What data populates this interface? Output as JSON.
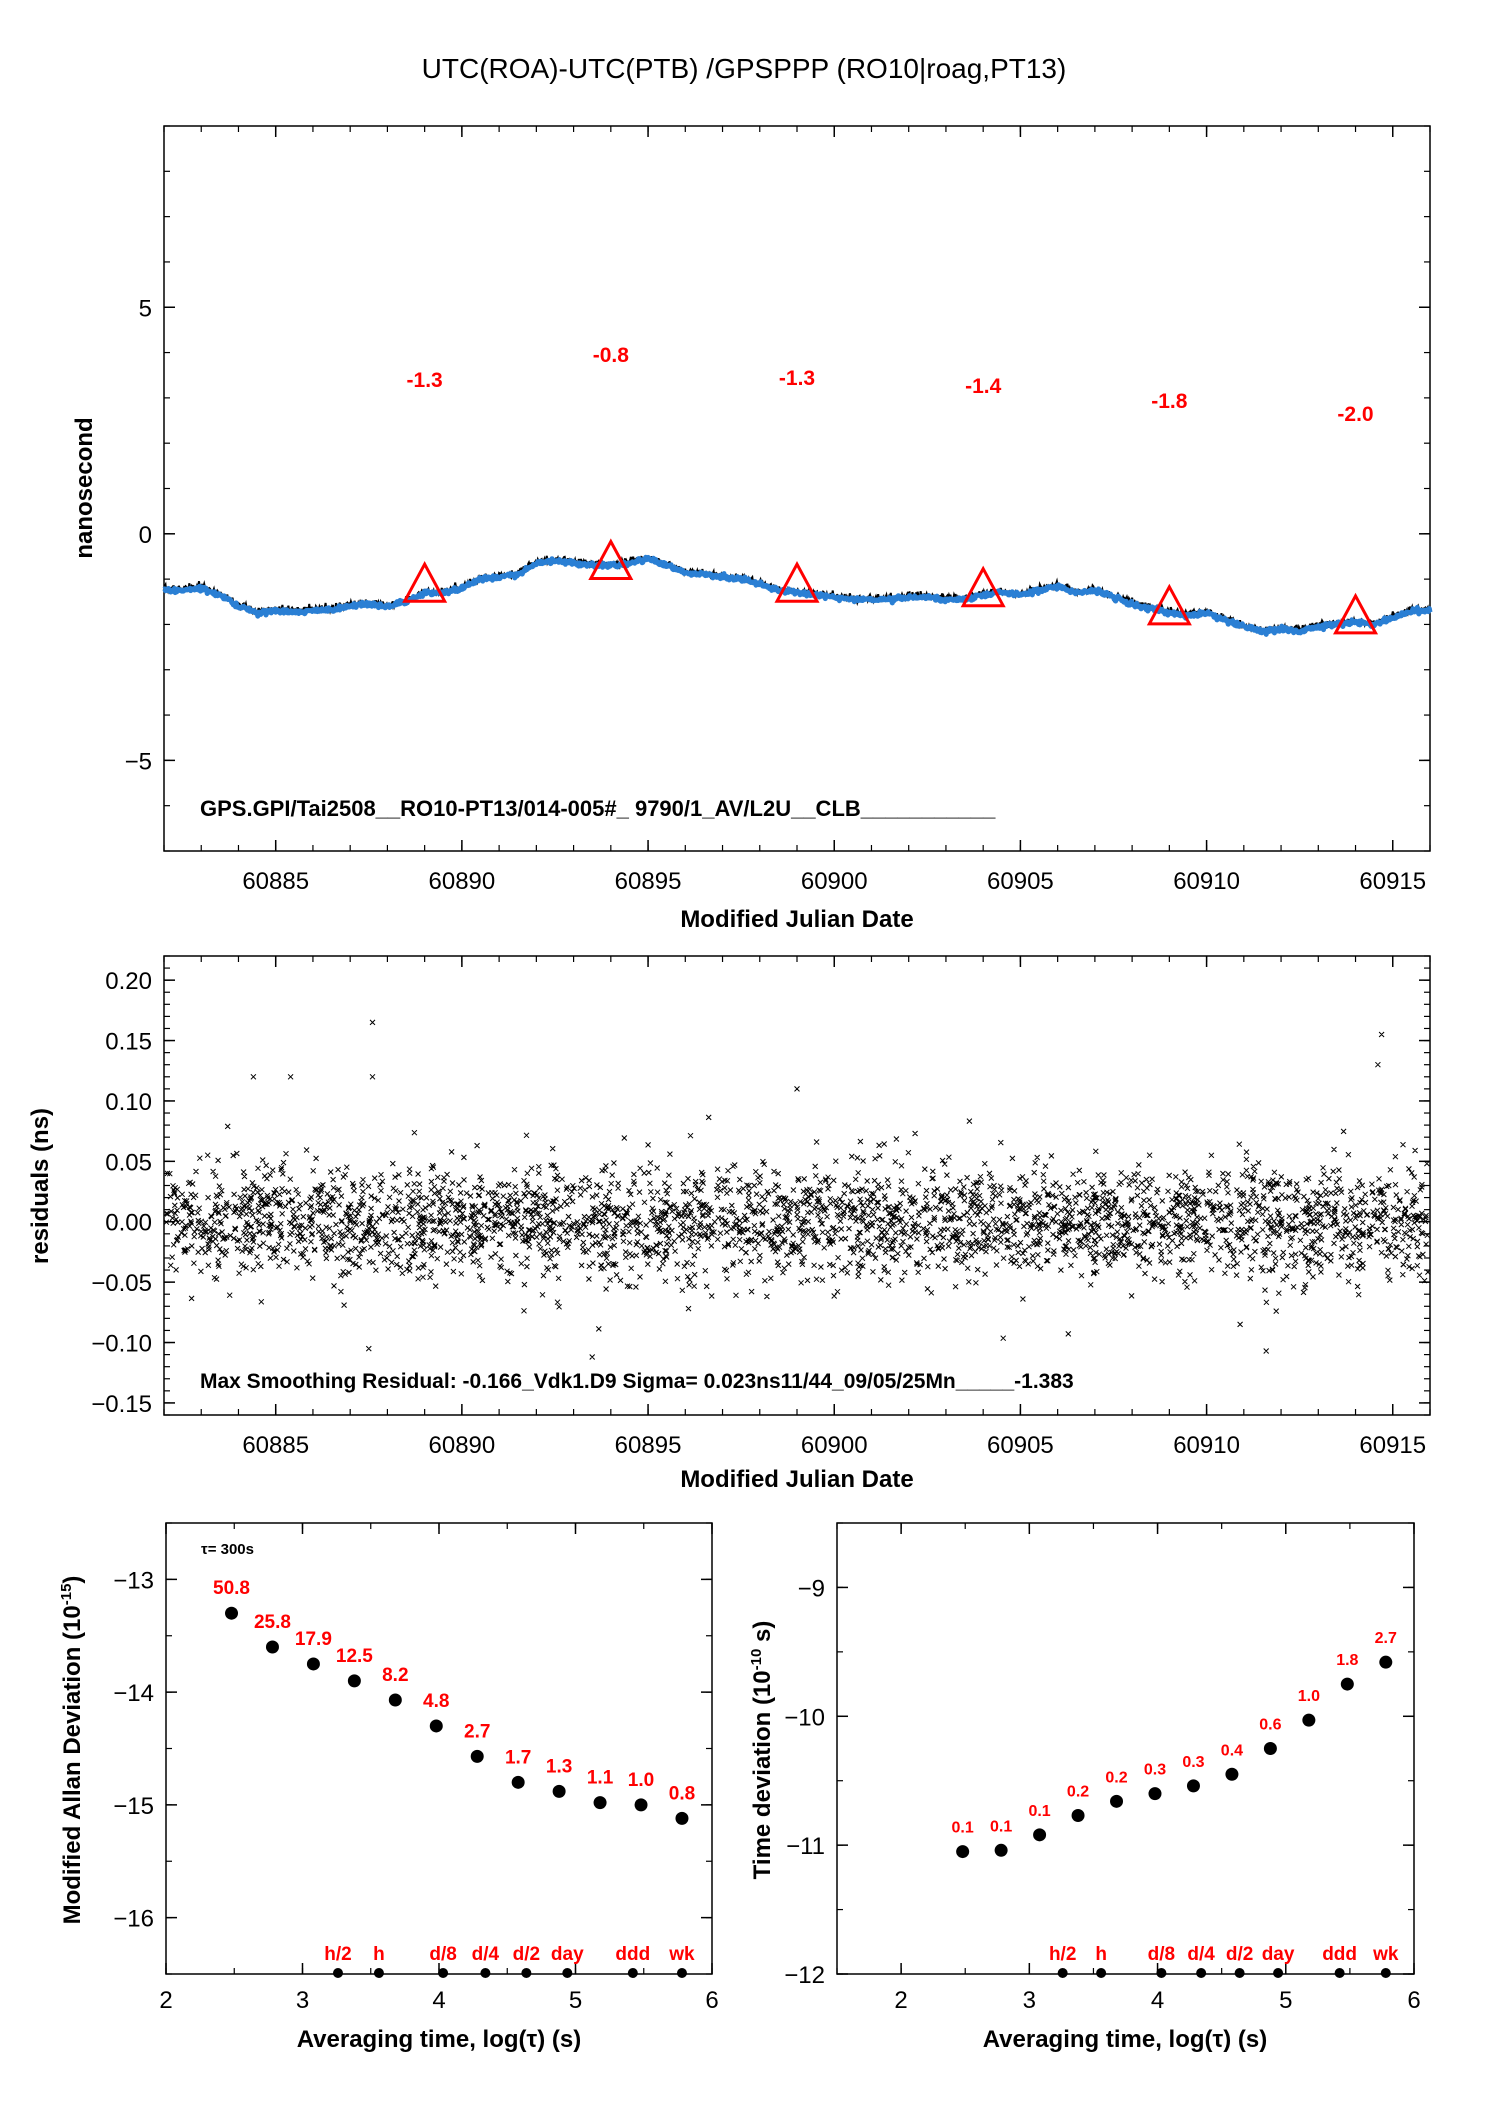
{
  "figure_title": "UTC(ROA)-UTC(PTB)  /GPSPPP  (RO10|roag,PT13)",
  "colors": {
    "series_line": "#2a7fd4",
    "marker": "#ff0000",
    "points": "#000000"
  },
  "chart_data": [
    {
      "type": "line",
      "xlabel": "Modified Julian Date",
      "ylabel": "nanosecond",
      "xlim": [
        60882,
        60916
      ],
      "ylim": [
        -7,
        9
      ],
      "xticks": [
        "60885",
        "60890",
        "60895",
        "60900",
        "60905",
        "60910",
        "60915"
      ],
      "yticks": [
        "5",
        "0",
        "−5"
      ],
      "annotation": "GPS.GPI/Tai2508__RO10-PT13/014-005#_  9790/1_AV/L2U__CLB___________",
      "series_profile": {
        "x": [
          60882,
          60882.5,
          60883,
          60883.5,
          60884,
          60884.5,
          60885,
          60885.5,
          60886,
          60886.5,
          60887,
          60887.5,
          60888,
          60888.5,
          60889,
          60889.5,
          60890,
          60890.5,
          60891,
          60891.5,
          60892,
          60892.5,
          60893,
          60893.5,
          60894,
          60894.5,
          60895,
          60895.5,
          60896,
          60896.5,
          60897,
          60897.5,
          60898,
          60898.5,
          60899,
          60899.5,
          60900,
          60900.5,
          60901,
          60901.5,
          60902,
          60902.5,
          60903,
          60903.5,
          60904,
          60904.5,
          60905,
          60905.5,
          60906,
          60906.5,
          60907,
          60907.5,
          60908,
          60908.5,
          60909,
          60909.5,
          60910,
          60910.5,
          60911,
          60911.5,
          60912,
          60912.5,
          60913,
          60913.5,
          60914,
          60914.5,
          60915,
          60915.5,
          60916
        ],
        "y": [
          -1.25,
          -1.25,
          -1.2,
          -1.35,
          -1.6,
          -1.75,
          -1.7,
          -1.72,
          -1.7,
          -1.68,
          -1.6,
          -1.55,
          -1.6,
          -1.5,
          -1.3,
          -1.3,
          -1.2,
          -1.0,
          -0.95,
          -0.9,
          -0.65,
          -0.6,
          -0.65,
          -0.7,
          -0.7,
          -0.65,
          -0.55,
          -0.7,
          -0.85,
          -0.9,
          -0.95,
          -1.0,
          -1.1,
          -1.25,
          -1.3,
          -1.35,
          -1.4,
          -1.45,
          -1.45,
          -1.45,
          -1.4,
          -1.4,
          -1.45,
          -1.45,
          -1.35,
          -1.3,
          -1.35,
          -1.25,
          -1.15,
          -1.3,
          -1.25,
          -1.4,
          -1.55,
          -1.65,
          -1.75,
          -1.8,
          -1.75,
          -1.9,
          -2.05,
          -2.15,
          -2.1,
          -2.15,
          -2.05,
          -2.0,
          -1.95,
          -2.0,
          -1.85,
          -1.7,
          -1.7
        ]
      },
      "markers": [
        {
          "x": 60889,
          "y": -1.2,
          "label": "-1.3"
        },
        {
          "x": 60894,
          "y": -0.7,
          "label": "-0.8"
        },
        {
          "x": 60899,
          "y": -1.2,
          "label": "-1.3"
        },
        {
          "x": 60904,
          "y": -1.3,
          "label": "-1.4"
        },
        {
          "x": 60909,
          "y": -1.7,
          "label": "-1.8"
        },
        {
          "x": 60914,
          "y": -1.9,
          "label": "-2.0"
        }
      ]
    },
    {
      "type": "scatter",
      "xlabel": "Modified Julian Date",
      "ylabel": "residuals (ns)",
      "xlim": [
        60882,
        60916
      ],
      "ylim": [
        -0.16,
        0.22
      ],
      "xticks": [
        "60885",
        "60890",
        "60895",
        "60900",
        "60905",
        "60910",
        "60915"
      ],
      "yticks": [
        "0.20",
        "0.15",
        "0.10",
        "0.05",
        "0.00",
        "−0.05",
        "−0.10",
        "−0.15"
      ],
      "annotation": "Max Smoothing Residual: -0.166_Vdk1.D9  Sigma= 0.023ns11/44_09/05/25Mn_____-1.383",
      "noise_sigma": 0.023,
      "outliers": [
        {
          "x": 60887.6,
          "y": 0.165
        },
        {
          "x": 60887.6,
          "y": 0.12
        },
        {
          "x": 60884.4,
          "y": 0.12
        },
        {
          "x": 60885.4,
          "y": 0.12
        },
        {
          "x": 60914.7,
          "y": 0.155
        },
        {
          "x": 60914.6,
          "y": 0.13
        },
        {
          "x": 60899,
          "y": 0.11
        },
        {
          "x": 60893.5,
          "y": -0.112
        },
        {
          "x": 60911.6,
          "y": -0.107
        },
        {
          "x": 60887.5,
          "y": -0.105
        },
        {
          "x": 60910.9,
          "y": -0.085
        }
      ]
    },
    {
      "type": "scatter",
      "xlabel": "Averaging time, log(τ) (s)",
      "ylabel": "Modified Allan Deviation (10^-15)",
      "ylabel_main": "Modified Allan Deviation (10",
      "ylabel_exp": "-15",
      "ylabel_end": ")",
      "xlim": [
        2,
        6
      ],
      "ylim": [
        -16.5,
        -12.5
      ],
      "xticks": [
        "2",
        "3",
        "4",
        "5",
        "6"
      ],
      "yticks": [
        "−13",
        "−14",
        "−15",
        "−16"
      ],
      "note": "τ= 300s",
      "points": [
        {
          "x": 2.48,
          "y": -13.3,
          "label": "50.8"
        },
        {
          "x": 2.78,
          "y": -13.6,
          "label": "25.8"
        },
        {
          "x": 3.08,
          "y": -13.75,
          "label": "17.9"
        },
        {
          "x": 3.38,
          "y": -13.9,
          "label": "12.5"
        },
        {
          "x": 3.68,
          "y": -14.07,
          "label": "8.2"
        },
        {
          "x": 3.98,
          "y": -14.3,
          "label": "4.8"
        },
        {
          "x": 4.28,
          "y": -14.57,
          "label": "2.7"
        },
        {
          "x": 4.58,
          "y": -14.8,
          "label": "1.7"
        },
        {
          "x": 4.88,
          "y": -14.88,
          "label": "1.3"
        },
        {
          "x": 5.18,
          "y": -14.98,
          "label": "1.1"
        },
        {
          "x": 5.48,
          "y": -15.0,
          "label": "1.0"
        },
        {
          "x": 5.78,
          "y": -15.12,
          "label": "0.8"
        }
      ],
      "interval_marks": [
        {
          "x": 3.26,
          "label": "h/2"
        },
        {
          "x": 3.56,
          "label": "h"
        },
        {
          "x": 4.03,
          "label": "d/8"
        },
        {
          "x": 4.34,
          "label": "d/4"
        },
        {
          "x": 4.64,
          "label": "d/2"
        },
        {
          "x": 4.94,
          "label": "day"
        },
        {
          "x": 5.42,
          "label": "ddd"
        },
        {
          "x": 5.78,
          "label": "wk"
        }
      ]
    },
    {
      "type": "scatter",
      "xlabel": "Averaging time, log(τ) (s)",
      "ylabel": "Time deviation (10^-10 s)",
      "ylabel_main": "Time deviation (10",
      "ylabel_exp": "-10",
      "ylabel_end": " s)",
      "xlim": [
        1.5,
        6
      ],
      "ylim": [
        -12,
        -8.5
      ],
      "xticks": [
        "2",
        "3",
        "4",
        "5",
        "6"
      ],
      "yticks": [
        "−9",
        "−10",
        "−11",
        "−12"
      ],
      "points": [
        {
          "x": 2.48,
          "y": -11.05,
          "label": "0.1"
        },
        {
          "x": 2.78,
          "y": -11.04,
          "label": "0.1"
        },
        {
          "x": 3.08,
          "y": -10.92,
          "label": "0.1"
        },
        {
          "x": 3.38,
          "y": -10.77,
          "label": "0.2"
        },
        {
          "x": 3.68,
          "y": -10.66,
          "label": "0.2"
        },
        {
          "x": 3.98,
          "y": -10.6,
          "label": "0.3"
        },
        {
          "x": 4.28,
          "y": -10.54,
          "label": "0.3"
        },
        {
          "x": 4.58,
          "y": -10.45,
          "label": "0.4"
        },
        {
          "x": 4.88,
          "y": -10.25,
          "label": "0.6"
        },
        {
          "x": 5.18,
          "y": -10.03,
          "label": "1.0"
        },
        {
          "x": 5.48,
          "y": -9.75,
          "label": "1.8"
        },
        {
          "x": 5.78,
          "y": -9.58,
          "label": "2.7"
        }
      ],
      "interval_marks": [
        {
          "x": 3.26,
          "label": "h/2"
        },
        {
          "x": 3.56,
          "label": "h"
        },
        {
          "x": 4.03,
          "label": "d/8"
        },
        {
          "x": 4.34,
          "label": "d/4"
        },
        {
          "x": 4.64,
          "label": "d/2"
        },
        {
          "x": 4.94,
          "label": "day"
        },
        {
          "x": 5.42,
          "label": "ddd"
        },
        {
          "x": 5.78,
          "label": "wk"
        }
      ]
    }
  ]
}
